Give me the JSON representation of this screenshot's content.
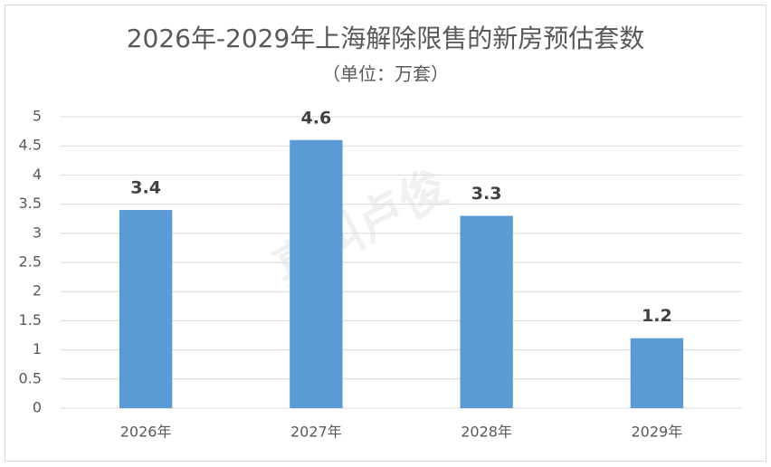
{
  "chart_data": {
    "type": "bar",
    "title": "2026年-2029年上海解除限售的新房预估套数",
    "subtitle": "（单位：万套）",
    "watermark": "真叫卢俊",
    "categories": [
      "2026年",
      "2027年",
      "2028年",
      "2029年"
    ],
    "values": [
      3.4,
      4.6,
      3.3,
      1.2
    ],
    "color": "#5b9bd5",
    "ylim": [
      0,
      5
    ],
    "yticks": [
      0,
      0.5,
      1,
      1.5,
      2,
      2.5,
      3,
      3.5,
      4,
      4.5,
      5
    ],
    "grid": true
  }
}
